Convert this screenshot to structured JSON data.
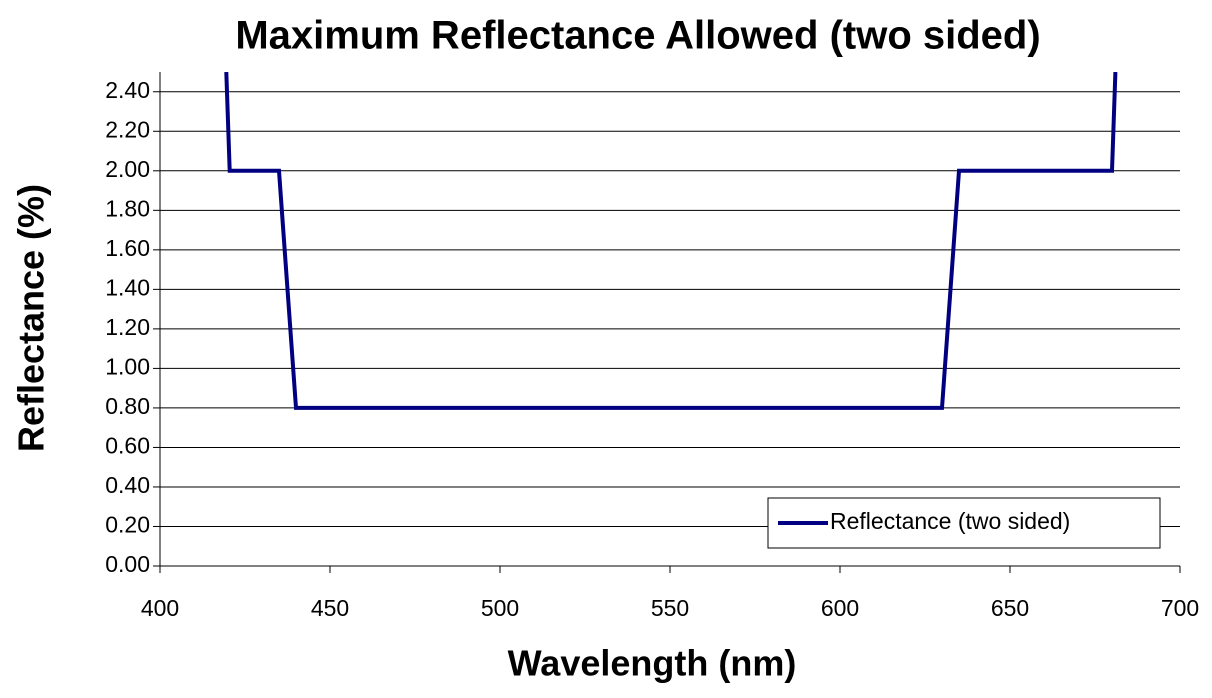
{
  "chart_data": {
    "type": "line",
    "title": "Maximum Reflectance Allowed (two sided)",
    "xlabel": "Wavelength (nm)",
    "ylabel": "Reflectance (%)",
    "x": [
      419.5,
      420.5,
      435,
      440,
      630,
      635,
      680,
      681
    ],
    "series": [
      {
        "name": "Reflectance (two sided)",
        "color": "#000080",
        "values": [
          2.5,
          2.0,
          2.0,
          0.8,
          0.8,
          2.0,
          2.0,
          2.5
        ]
      }
    ],
    "xlim": [
      400,
      700
    ],
    "xticks": [
      400,
      450,
      500,
      550,
      600,
      650,
      700
    ],
    "ylim": [
      0,
      2.5
    ],
    "yticks": [
      {
        "value": 0,
        "label": "0.00"
      },
      {
        "value": 0.2,
        "label": "0.20"
      },
      {
        "value": 0.4,
        "label": "0.40"
      },
      {
        "value": 0.6,
        "label": "0.60"
      },
      {
        "value": 0.8,
        "label": "0.80"
      },
      {
        "value": 1.0,
        "label": "1.00"
      },
      {
        "value": 1.2,
        "label": "1.20"
      },
      {
        "value": 1.4,
        "label": "1.40"
      },
      {
        "value": 1.6,
        "label": "1.60"
      },
      {
        "value": 1.8,
        "label": "1.80"
      },
      {
        "value": 2.0,
        "label": "2.00"
      },
      {
        "value": 2.2,
        "label": "2.20"
      },
      {
        "value": 2.4,
        "label": "2.40"
      }
    ],
    "grid": true,
    "legend": "lower right"
  }
}
